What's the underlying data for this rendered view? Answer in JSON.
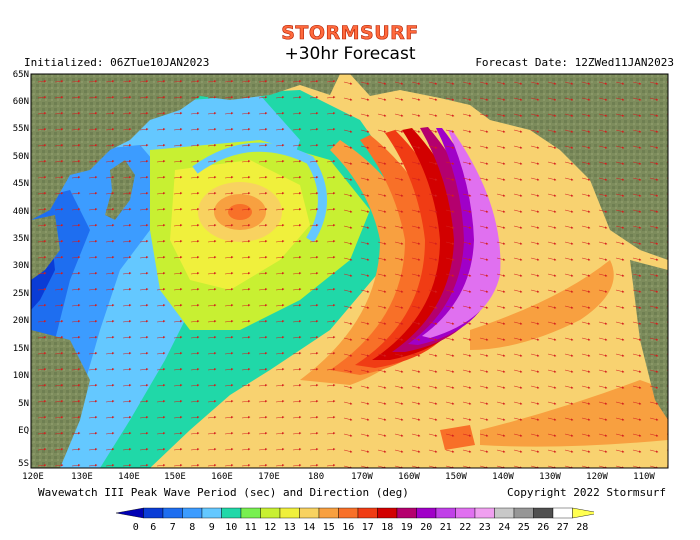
{
  "header": {
    "brand": "STORMSURF",
    "forecast_hour": "+30hr Forecast",
    "initialized": "Initialized: 06ZTue10JAN2023",
    "forecast_date": "Forecast Date: 12ZWed11JAN2023"
  },
  "axes": {
    "lat_labels": [
      "65N",
      "60N",
      "55N",
      "50N",
      "45N",
      "40N",
      "35N",
      "30N",
      "25N",
      "20N",
      "15N",
      "10N",
      "5N",
      "EQ",
      "5S"
    ],
    "lon_labels": [
      "120E",
      "130E",
      "140E",
      "150E",
      "160E",
      "170E",
      "180",
      "170W",
      "160W",
      "150W",
      "140W",
      "130W",
      "120W",
      "110W"
    ]
  },
  "footer": {
    "product": "Wavewatch III Peak Wave Period (sec) and Direction (deg)",
    "copyright": "Copyright 2022 Stormsurf"
  },
  "colorbar": {
    "labels": [
      "0",
      "6",
      "7",
      "8",
      "9",
      "10",
      "11",
      "12",
      "13",
      "14",
      "15",
      "16",
      "17",
      "18",
      "19",
      "20",
      "21",
      "22",
      "23",
      "24",
      "25",
      "26",
      "27",
      "28"
    ],
    "colors": [
      "#0000b4",
      "#0a3cd6",
      "#1e6ef0",
      "#3c9cff",
      "#64c8ff",
      "#20d8a8",
      "#78f050",
      "#c8f032",
      "#f0f03c",
      "#f8d260",
      "#f8a040",
      "#f87028",
      "#f03c14",
      "#d20000",
      "#b4006e",
      "#a000c8",
      "#c040e8",
      "#e070f0",
      "#f0a0f0",
      "#c8c8c8",
      "#969696",
      "#505050",
      "#ffffff",
      "#ffff50"
    ]
  },
  "map_colors": {
    "ocean_base": "#f8d270",
    "land": "#7a8a5a"
  }
}
